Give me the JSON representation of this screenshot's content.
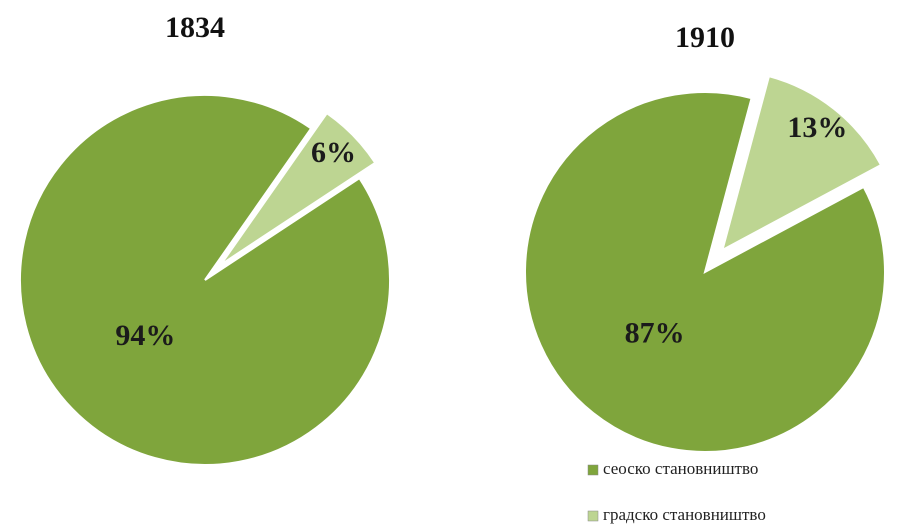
{
  "chart_data": [
    {
      "type": "pie",
      "title": "1834",
      "categories": [
        "сеоско становништво",
        "градско становништво"
      ],
      "values": [
        94,
        6
      ],
      "value_labels": [
        "94%",
        "6%"
      ],
      "colors": [
        "#7fa53c",
        "#bdd592"
      ]
    },
    {
      "type": "pie",
      "title": "1910",
      "categories": [
        "сеоско становништво",
        "градско становништво"
      ],
      "values": [
        87,
        13
      ],
      "value_labels": [
        "87%",
        "13%"
      ],
      "colors": [
        "#7fa53c",
        "#bdd592"
      ]
    }
  ]
}
